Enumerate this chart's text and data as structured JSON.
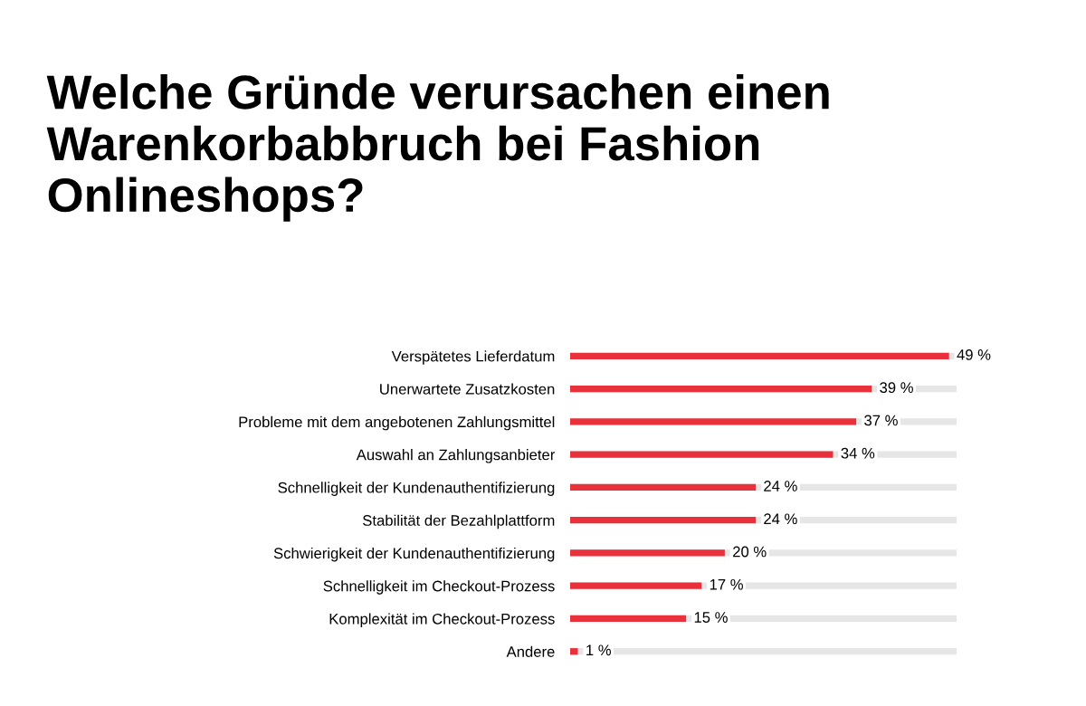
{
  "chart_data": {
    "type": "bar",
    "orientation": "horizontal",
    "title": "Welche Gründe verursachen einen Warenkorbabbruch bei Fashion Onlineshops?",
    "categories": [
      "Verspätetes Lieferdatum",
      "Unerwartete Zusatzkosten",
      "Probleme mit dem angebotenen Zahlungsmittel",
      "Auswahl an Zahlungsanbieter",
      "Schnelligkeit der Kundenauthentifizierung",
      "Stabilität der Bezahlplattform",
      "Schwierigkeit der Kundenauthentifizierung",
      "Schnelligkeit im Checkout-Prozess",
      "Komplexität im Checkout-Prozess",
      "Andere"
    ],
    "series": [
      {
        "color": "#e8313a",
        "values": [
          49,
          39,
          37,
          34,
          24,
          24,
          20,
          17,
          15,
          1
        ],
        "value_labels": [
          "49 %",
          "39 %",
          "37 %",
          "34 %",
          "24 %",
          "24 %",
          "20 %",
          "17 %",
          "15 %",
          "1 %"
        ]
      }
    ],
    "xlim": [
      0,
      50
    ],
    "tick_labels": "y",
    "grid": false,
    "legend": false
  }
}
